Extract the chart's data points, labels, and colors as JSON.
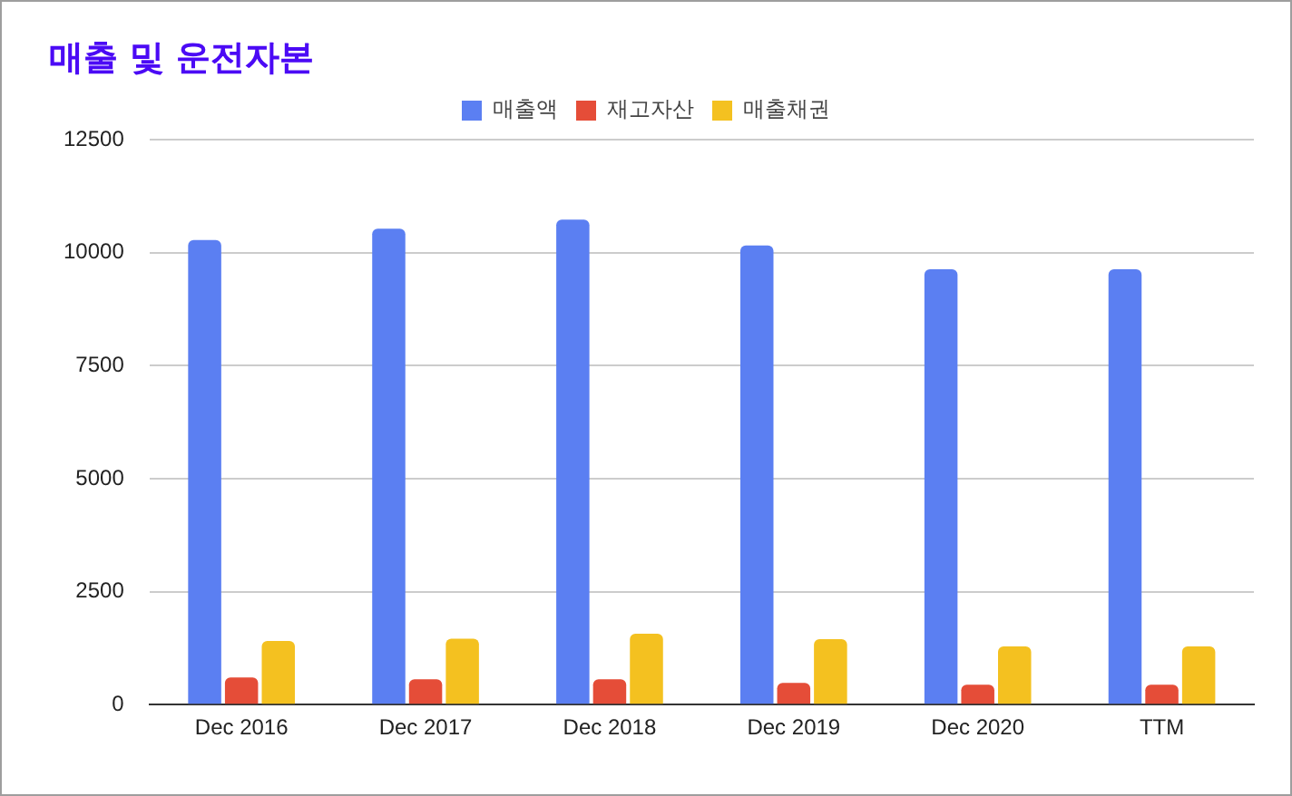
{
  "chart_data": {
    "type": "bar",
    "title": "매출 및 운전자본",
    "categories": [
      "Dec 2016",
      "Dec 2017",
      "Dec 2018",
      "Dec 2019",
      "Dec 2020",
      "TTM"
    ],
    "series": [
      {
        "name": "매출액",
        "color": "#5b7ff2",
        "values": [
          10280,
          10530,
          10730,
          10160,
          9630,
          9630
        ]
      },
      {
        "name": "재고자산",
        "color": "#e54d38",
        "values": [
          600,
          560,
          560,
          480,
          440,
          440
        ]
      },
      {
        "name": "매출채권",
        "color": "#f4c120",
        "values": [
          1410,
          1460,
          1570,
          1450,
          1290,
          1290
        ]
      }
    ],
    "ylim": [
      0,
      12500
    ],
    "yticks": [
      0,
      2500,
      5000,
      7500,
      10000,
      12500
    ],
    "grid": "y",
    "legend": "top"
  }
}
